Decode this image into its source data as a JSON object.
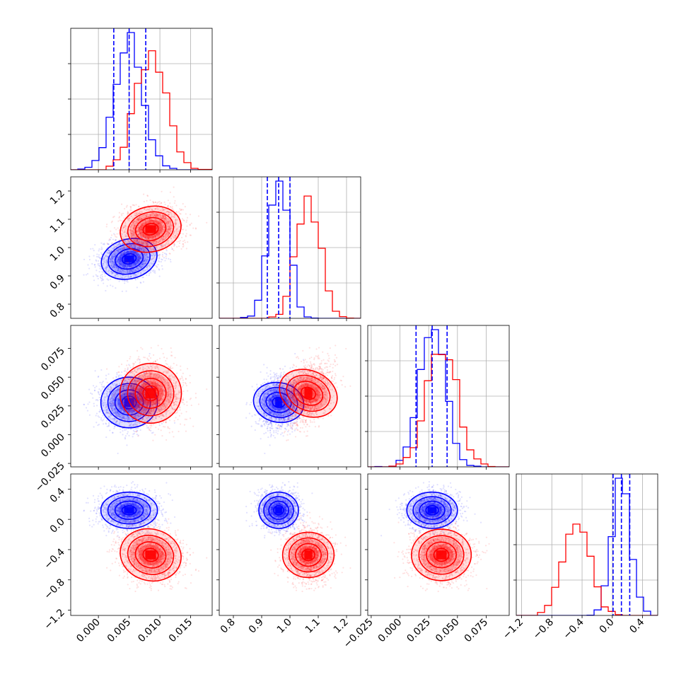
{
  "chart_data": {
    "type": "corner",
    "description_free": true,
    "params": [
      {
        "lim": [
          -0.0045,
          0.0185
        ],
        "ticks": [
          0.0,
          0.005,
          0.01,
          0.015
        ],
        "tick_labels": [
          "0.000",
          "0.005",
          "0.010",
          "0.015"
        ]
      },
      {
        "lim": [
          0.75,
          1.25
        ],
        "ticks": [
          0.8,
          0.9,
          1.0,
          1.1,
          1.2
        ],
        "tick_labels": [
          "0.8",
          "0.9",
          "1.0",
          "1.1",
          "1.2"
        ]
      },
      {
        "lim": [
          -0.028,
          0.095
        ],
        "ticks": [
          -0.025,
          0.0,
          0.025,
          0.05,
          0.075
        ],
        "tick_labels": [
          "−0.025",
          "0.000",
          "0.025",
          "0.050",
          "0.075"
        ]
      },
      {
        "lim": [
          -1.27,
          0.6
        ],
        "ticks": [
          -1.2,
          -0.8,
          -0.4,
          0.0,
          0.4
        ],
        "tick_labels": [
          "−1.2",
          "−0.8",
          "−0.4",
          "0.0",
          "0.4"
        ]
      }
    ],
    "series": [
      {
        "color": "#0000ff",
        "means": [
          0.005,
          0.96,
          0.028,
          0.12
        ],
        "sds": [
          0.0023,
          0.035,
          0.011,
          0.12
        ],
        "correlations": {
          "1-0": 0.2,
          "2-0": 0.0,
          "2-1": 0.1,
          "3-0": 0.0,
          "3-1": 0.0,
          "3-2": 0.0
        },
        "quantiles": [
          [
            0.0025,
            0.005,
            0.0077
          ],
          [
            0.92,
            0.96,
            1.0
          ],
          [
            0.014,
            0.028,
            0.041
          ],
          [
            0.01,
            0.12,
            0.23
          ]
        ]
      },
      {
        "color": "#ff0000",
        "means": [
          0.0085,
          1.065,
          0.036,
          -0.47
        ],
        "sds": [
          0.0025,
          0.04,
          0.013,
          0.17
        ],
        "correlations": {
          "1-0": 0.15,
          "2-0": 0.0,
          "2-1": 0.3,
          "3-0": -0.1,
          "3-1": 0.0,
          "3-2": 0.0
        },
        "quantiles": null
      }
    ]
  }
}
